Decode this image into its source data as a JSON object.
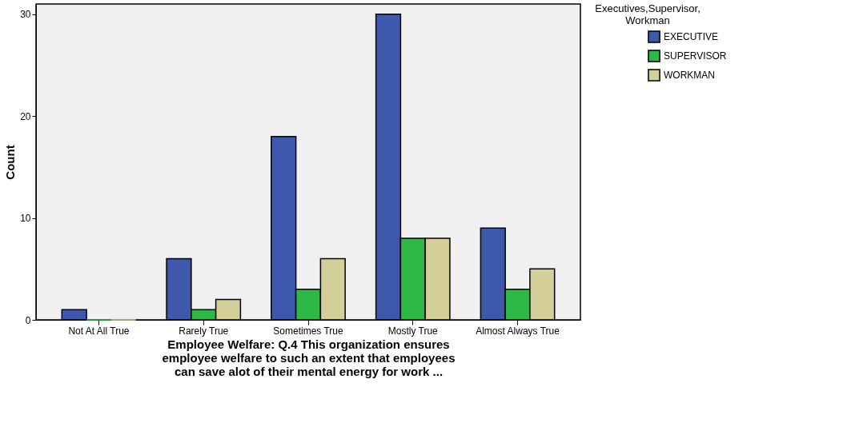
{
  "chart_data": {
    "type": "bar",
    "xlabel": "Employee Welfare: Q.4 This organization ensures employee welfare to such an extent that employees can save alot of their mental energy for work ...",
    "ylabel": "Count",
    "legend_title": "Executives,Supervisor, Workman",
    "categories": [
      "Not At All True",
      "Rarely True",
      "Sometimes True",
      "Mostly True",
      "Almost Always True"
    ],
    "series": [
      {
        "name": "EXECUTIVE",
        "color": "#3e58ac",
        "values": [
          1,
          6,
          18,
          30,
          9
        ]
      },
      {
        "name": "SUPERVISOR",
        "color": "#2eb848",
        "values": [
          0,
          1,
          3,
          8,
          3
        ]
      },
      {
        "name": "WORKMAN",
        "color": "#d4ce99",
        "values": [
          0,
          2,
          6,
          8,
          5
        ]
      }
    ],
    "ylim": [
      0,
      31
    ],
    "yticks": [
      0,
      10,
      20,
      30
    ],
    "grid": false,
    "legend": "top right"
  }
}
